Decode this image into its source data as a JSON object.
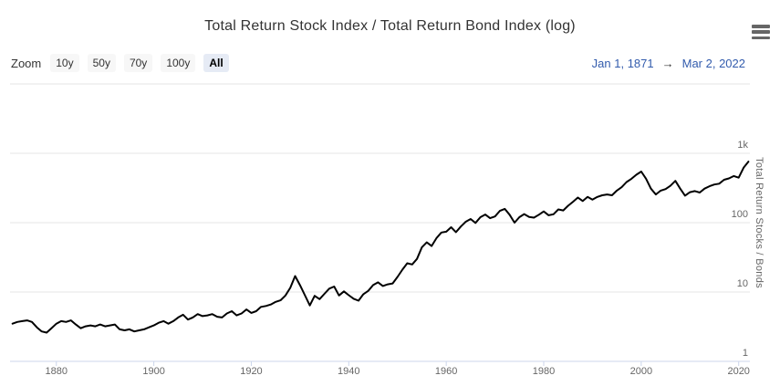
{
  "range_selector": {
    "zoom_label": "Zoom",
    "buttons": [
      {
        "label": "10y"
      },
      {
        "label": "50y"
      },
      {
        "label": "70y"
      },
      {
        "label": "100y"
      },
      {
        "label": "All"
      }
    ],
    "selected_index": 4,
    "from": "Jan 1, 1871",
    "arrow": "→",
    "to": "Mar 2, 2022"
  },
  "colors": {
    "line": "#000000",
    "grid": "#e6e6e6",
    "axis_line": "#ccd6eb",
    "tick": "#ccd6eb",
    "label_gray": "#666666",
    "title_gray": "#333333",
    "accent_blue": "#335cad",
    "button_bg": "#f7f7f7",
    "button_selected_bg": "#e6ebf5",
    "menu_icon": "#666666"
  },
  "chart_data": {
    "type": "line",
    "title": "Total Return Stock Index / Total Return Bond Index (log)",
    "xlabel": "",
    "ylabel": "Total Return Stocks / Bonds",
    "y_scale": "log",
    "xlim": [
      1870.5,
      2022.3
    ],
    "ylim": [
      1,
      10000
    ],
    "grid": true,
    "legend": "none",
    "x_ticks": [
      1880,
      1900,
      1920,
      1940,
      1960,
      1980,
      2000,
      2020
    ],
    "y_ticks": [
      {
        "value": 1,
        "label": "1"
      },
      {
        "value": 10,
        "label": "10"
      },
      {
        "value": 100,
        "label": "100"
      },
      {
        "value": 1000,
        "label": "1k"
      },
      {
        "value": 10000,
        "label": ""
      }
    ],
    "series": [
      {
        "name": "Total Return Stocks / Bonds",
        "color": "#000000",
        "x": [
          1871,
          1872,
          1873,
          1874,
          1875,
          1876,
          1877,
          1878,
          1879,
          1880,
          1881,
          1882,
          1883,
          1884,
          1885,
          1886,
          1887,
          1888,
          1889,
          1890,
          1891,
          1892,
          1893,
          1894,
          1895,
          1896,
          1897,
          1898,
          1899,
          1900,
          1901,
          1902,
          1903,
          1904,
          1905,
          1906,
          1907,
          1908,
          1909,
          1910,
          1911,
          1912,
          1913,
          1914,
          1915,
          1916,
          1917,
          1918,
          1919,
          1920,
          1921,
          1922,
          1923,
          1924,
          1925,
          1926,
          1927,
          1928,
          1929,
          1930,
          1931,
          1932,
          1933,
          1934,
          1935,
          1936,
          1937,
          1938,
          1939,
          1940,
          1941,
          1942,
          1943,
          1944,
          1945,
          1946,
          1947,
          1948,
          1949,
          1950,
          1951,
          1952,
          1953,
          1954,
          1955,
          1956,
          1957,
          1958,
          1959,
          1960,
          1961,
          1962,
          1963,
          1964,
          1965,
          1966,
          1967,
          1968,
          1969,
          1970,
          1971,
          1972,
          1973,
          1974,
          1975,
          1976,
          1977,
          1978,
          1979,
          1980,
          1981,
          1982,
          1983,
          1984,
          1985,
          1986,
          1987,
          1988,
          1989,
          1990,
          1991,
          1992,
          1993,
          1994,
          1995,
          1996,
          1997,
          1998,
          1999,
          2000,
          2001,
          2002,
          2003,
          2004,
          2005,
          2006,
          2007,
          2008,
          2009,
          2010,
          2011,
          2012,
          2013,
          2014,
          2015,
          2016,
          2017,
          2018,
          2019,
          2020,
          2021,
          2022
        ],
        "y": [
          3.5,
          3.7,
          3.8,
          3.9,
          3.7,
          3.1,
          2.7,
          2.6,
          3.0,
          3.5,
          3.8,
          3.7,
          3.9,
          3.4,
          3.0,
          3.2,
          3.3,
          3.2,
          3.4,
          3.2,
          3.3,
          3.4,
          2.9,
          2.8,
          2.9,
          2.7,
          2.8,
          2.9,
          3.1,
          3.3,
          3.6,
          3.8,
          3.5,
          3.8,
          4.3,
          4.7,
          4.0,
          4.3,
          4.8,
          4.5,
          4.6,
          4.8,
          4.4,
          4.3,
          4.9,
          5.3,
          4.6,
          4.9,
          5.6,
          5.0,
          5.3,
          6.1,
          6.3,
          6.6,
          7.2,
          7.6,
          8.9,
          11.5,
          17.0,
          12.5,
          9.0,
          6.4,
          8.8,
          7.9,
          9.4,
          11.2,
          12.0,
          8.9,
          10.2,
          9.0,
          8.0,
          7.5,
          9.3,
          10.4,
          12.6,
          13.8,
          12.2,
          12.9,
          13.3,
          16.5,
          21,
          26,
          25,
          30,
          44,
          52,
          46,
          60,
          72,
          74,
          86,
          73,
          88,
          103,
          113,
          99,
          120,
          131,
          116,
          123,
          148,
          158,
          130,
          100,
          120,
          133,
          121,
          118,
          130,
          145,
          128,
          132,
          155,
          150,
          175,
          200,
          230,
          205,
          235,
          215,
          235,
          248,
          255,
          248,
          290,
          325,
          385,
          430,
          490,
          545,
          430,
          310,
          255,
          290,
          305,
          340,
          400,
          310,
          245,
          275,
          285,
          272,
          310,
          335,
          355,
          365,
          415,
          435,
          470,
          445,
          620,
          760
        ]
      }
    ]
  }
}
